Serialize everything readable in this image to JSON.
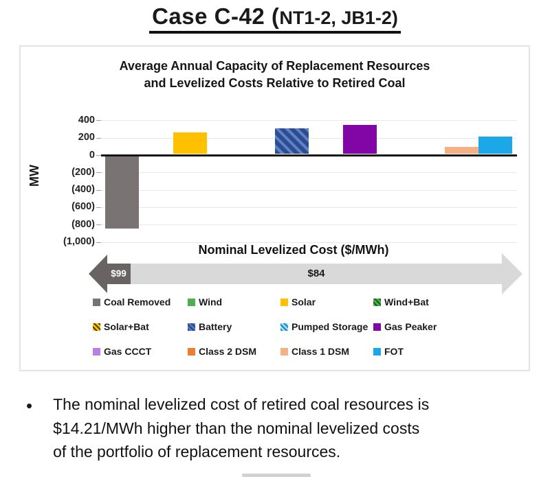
{
  "title": {
    "main": "Case C-42 (",
    "sub": "NT1-2, JB1-2)"
  },
  "chart_data": {
    "type": "bar",
    "title_line1": "Average Annual Capacity of Replacement Resources",
    "title_line2": "and Levelized Costs Relative to Retired Coal",
    "ylabel": "MW",
    "units": "MW",
    "ylim": [
      -1000,
      400
    ],
    "ytick_values": [
      400,
      200,
      0,
      -200,
      -400,
      -600,
      -800,
      -1000
    ],
    "ytick_labels": [
      "400",
      "200",
      "0",
      "(200)",
      "(400)",
      "(600)",
      "(800)",
      "(1,000)"
    ],
    "grid": true,
    "legend_position": "bottom",
    "series": [
      {
        "name": "Coal Removed",
        "value": -830,
        "color": "#7a7373",
        "hatch": false
      },
      {
        "name": "Wind",
        "value": 0,
        "color": "#4caf50",
        "hatch": false
      },
      {
        "name": "Solar",
        "value": 250,
        "color": "#ffc000",
        "hatch": false
      },
      {
        "name": "Wind+Bat",
        "value": 0,
        "color": "#4caf50",
        "hatch": true,
        "hatch_color": "#1b5e20"
      },
      {
        "name": "Solar+Bat",
        "value": 0,
        "color": "#ffc000",
        "hatch": true,
        "hatch_color": "#4d3e00"
      },
      {
        "name": "Battery",
        "value": 295,
        "color": "#2e4d8e",
        "hatch": true,
        "hatch_color": "#5d82cc"
      },
      {
        "name": "Pumped Storage",
        "value": 0,
        "color": "#2196d6",
        "hatch": true,
        "hatch_color": "#bfe6f7"
      },
      {
        "name": "Gas Peaker",
        "value": 335,
        "color": "#8206a6",
        "hatch": false
      },
      {
        "name": "Gas CCCT",
        "value": 0,
        "color": "#b97fe3",
        "hatch": false
      },
      {
        "name": "Class 2 DSM",
        "value": 0,
        "color": "#ed7d31",
        "hatch": false
      },
      {
        "name": "Class 1 DSM",
        "value": 80,
        "color": "#f4b183",
        "hatch": false
      },
      {
        "name": "FOT",
        "value": 200,
        "color": "#1ba7e8",
        "hatch": false
      }
    ],
    "gridline_color": "#e8e8e8",
    "axis_color": "#141414"
  },
  "cost_arrow": {
    "label": "Nominal Levelized Cost ($/MWh)",
    "left_value": "$99",
    "right_value": "$84",
    "left_color": "#6a6363",
    "right_color": "#d9d9d9"
  },
  "bullet": {
    "marker": "•",
    "lines": [
      "The nominal levelized cost of retired coal resources is",
      "$14.21/MWh higher than the nominal levelized costs",
      "of the portfolio of replacement resources."
    ]
  }
}
